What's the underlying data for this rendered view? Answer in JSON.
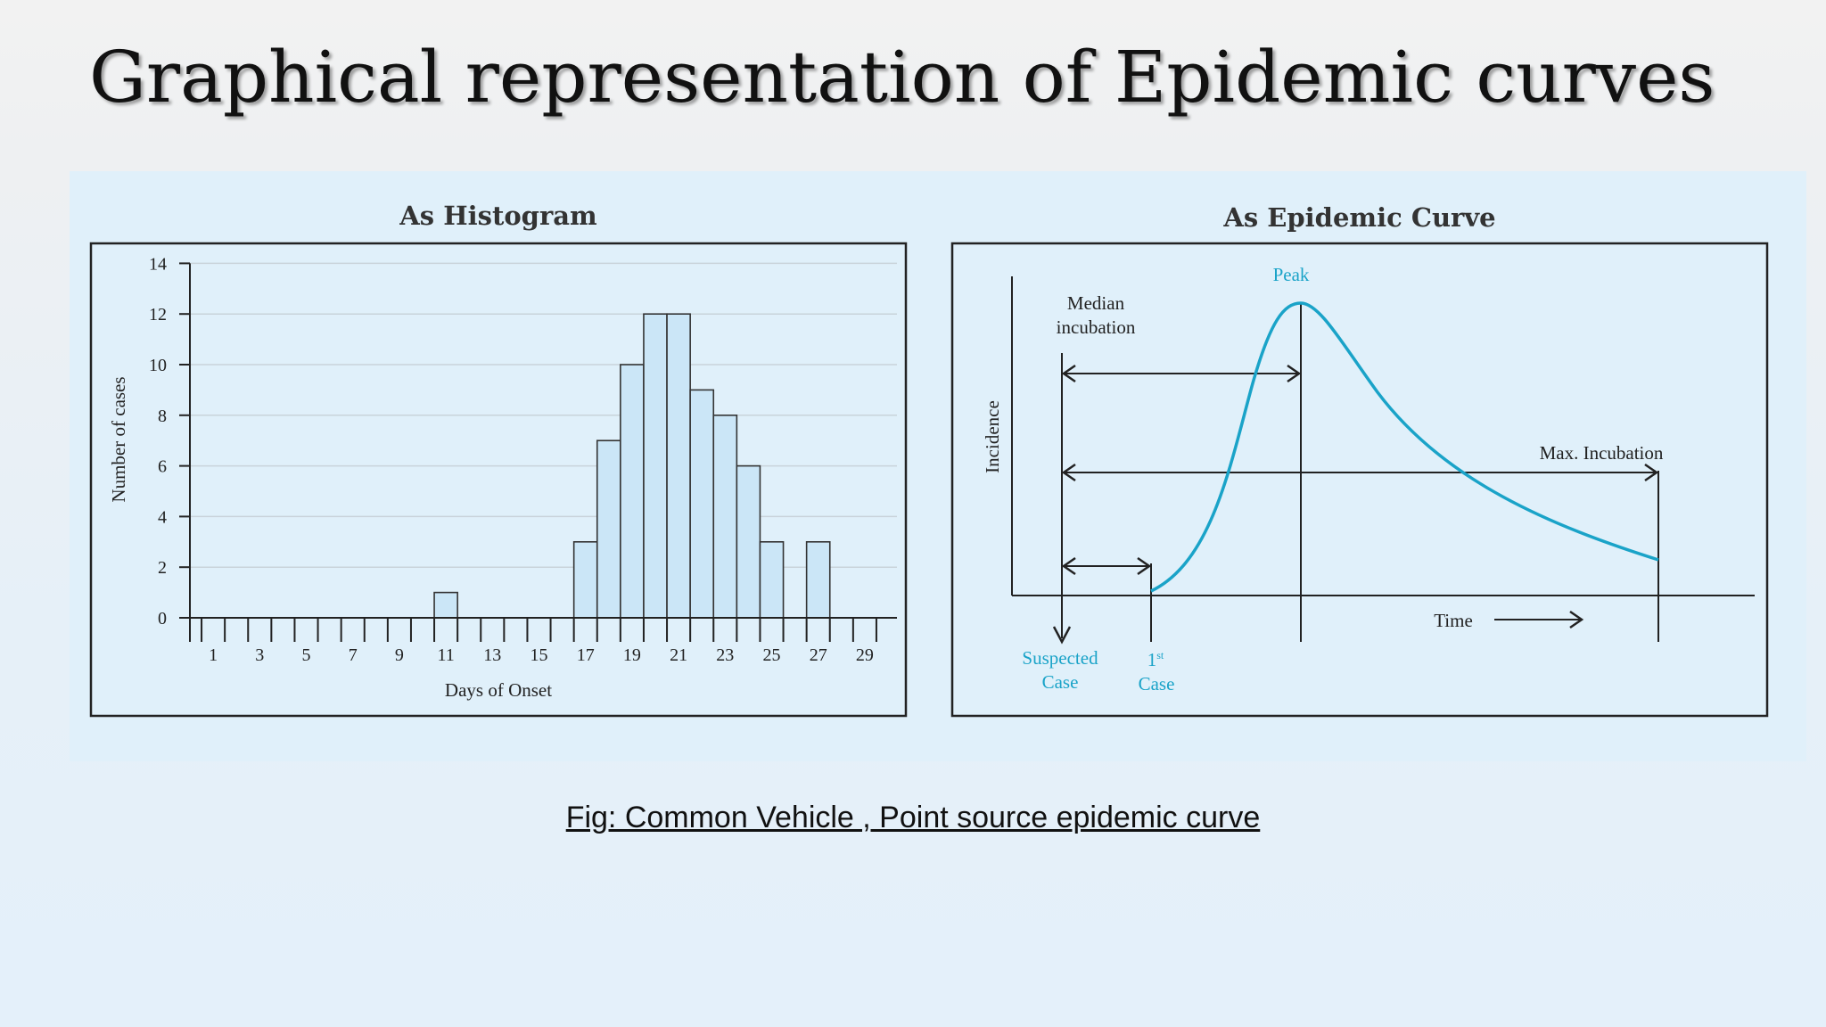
{
  "slide": {
    "title": "Graphical representation of Epidemic curves",
    "caption": "Fig: Common Vehicle , Point source epidemic curve"
  },
  "chart_data": [
    {
      "type": "bar",
      "title": "As Histogram",
      "xlabel": "Days of Onset",
      "ylabel": "Number of cases",
      "x_tick_labels": [
        "1",
        "3",
        "5",
        "7",
        "9",
        "11",
        "13",
        "15",
        "17",
        "19",
        "21",
        "23",
        "25",
        "27",
        "29"
      ],
      "y_tick_labels": [
        "0",
        "2",
        "4",
        "6",
        "8",
        "10",
        "12",
        "14"
      ],
      "days": [
        1,
        2,
        3,
        4,
        5,
        6,
        7,
        8,
        9,
        10,
        11,
        12,
        13,
        14,
        15,
        16,
        17,
        18,
        19,
        20,
        21,
        22,
        23,
        24,
        25,
        26,
        27,
        28,
        29
      ],
      "values": [
        0,
        0,
        0,
        0,
        0,
        0,
        0,
        0,
        0,
        0,
        1,
        0,
        0,
        0,
        0,
        0,
        3,
        7,
        10,
        12,
        12,
        9,
        8,
        6,
        3,
        0,
        3,
        0,
        0
      ],
      "ylim": [
        0,
        14
      ],
      "xlim": [
        0,
        30
      ],
      "grid": true,
      "bar_color": "#cbe6f7"
    },
    {
      "type": "line",
      "title": "As Epidemic Curve",
      "xlabel": "Time",
      "ylabel": "Incidence",
      "annotations": {
        "peak": "Peak",
        "median_incubation": [
          "Median",
          "incubation"
        ],
        "max_incubation": "Max. Incubation",
        "suspected_case": [
          "Suspected",
          "Case"
        ],
        "first_case_num": "1",
        "first_case_sup": "st",
        "first_case_word": "Case"
      },
      "curve_color": "#1aa3c8"
    }
  ]
}
